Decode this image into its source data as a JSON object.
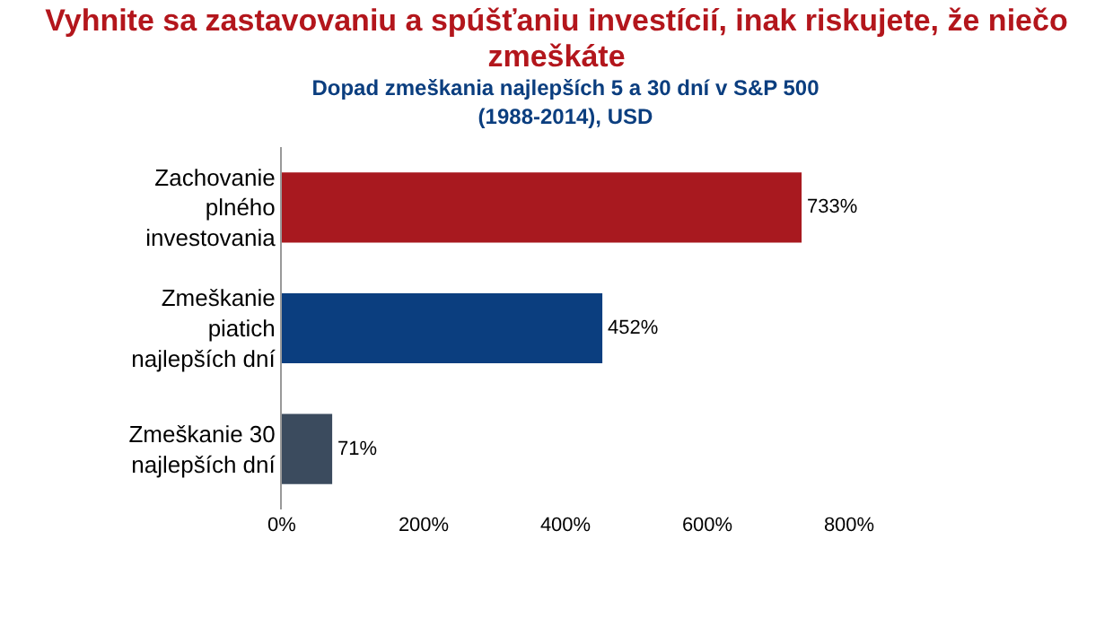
{
  "chart_data": {
    "type": "bar",
    "orientation": "horizontal",
    "title": "Vyhnite sa zastavovaniu a spúšťaniu investícií, inak riskujete, že niečo zmeškáte",
    "subtitle": "Dopad zmeškania najlepších 5 a 30 dní v S&P 500 (1988-2014), USD",
    "categories": [
      "Zachovanie plného investovania",
      "Zmeškanie piatich najlepších dní",
      "Zmeškanie 30 najlepších dní"
    ],
    "values": [
      733,
      452,
      71
    ],
    "colors": [
      "#a8191f",
      "#0b3e7f",
      "#3b4b5e"
    ],
    "value_labels": [
      "733%",
      "452%",
      "71%"
    ],
    "xlim": [
      0,
      800
    ],
    "xticks": [
      {
        "value": 0,
        "label": "0%"
      },
      {
        "value": 200,
        "label": "200%"
      },
      {
        "value": 400,
        "label": "400%"
      },
      {
        "value": 600,
        "label": "600%"
      },
      {
        "value": 800,
        "label": "800%"
      }
    ],
    "grid": false
  }
}
